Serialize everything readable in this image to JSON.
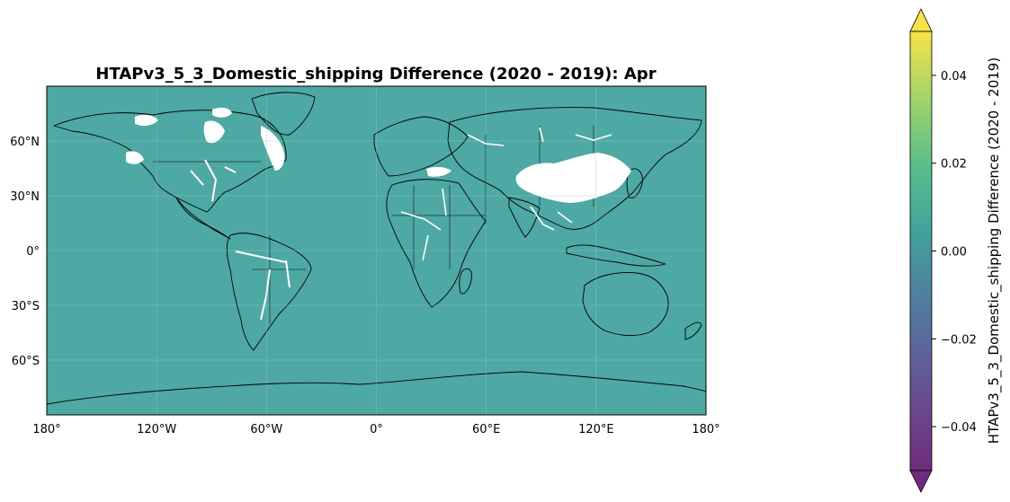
{
  "title": "HTAPv3_5_3_Domestic_shipping Difference (2020 - 2019): Apr",
  "map": {
    "ocean_fill_color": "#4ea8a3",
    "nodata_color": "#ffffff",
    "coastline_color": "#000000",
    "gridlines": true,
    "x_ticks": [
      "180°",
      "120°W",
      "60°W",
      "0°",
      "60°E",
      "120°E",
      "180°"
    ],
    "y_ticks": [
      "60°N",
      "30°N",
      "0°",
      "30°S",
      "60°S"
    ],
    "lon_range": [
      -180,
      180
    ],
    "lat_range": [
      -90,
      90
    ]
  },
  "colorbar": {
    "label": "HTAPv3_5_3_Domestic_shipping Difference (2020 - 2019)",
    "range": [
      -0.05,
      0.05
    ],
    "ticks": [
      "0.04",
      "0.02",
      "0.00",
      "−0.02",
      "−0.04"
    ],
    "tick_values": [
      0.04,
      0.02,
      0.0,
      -0.02,
      -0.04
    ],
    "extend": "both",
    "colormap": "viridis"
  }
}
